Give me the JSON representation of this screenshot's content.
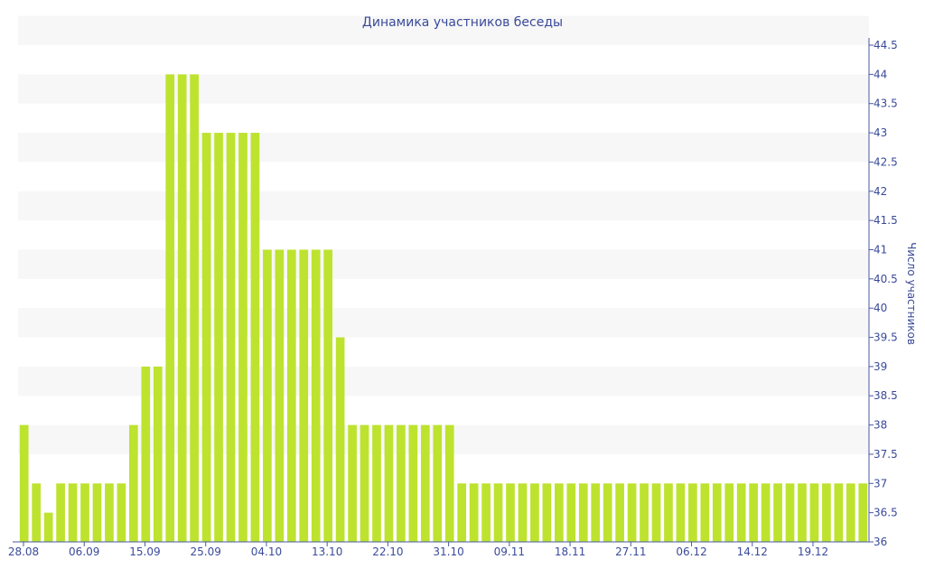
{
  "chart_data": {
    "type": "bar",
    "title": "Динамика участников беседы",
    "ylabel": "Число участников",
    "xlabel": "",
    "ylim": [
      36,
      44.5
    ],
    "y_ticks": [
      "36",
      "36.5",
      "37",
      "37.5",
      "38",
      "38.5",
      "39",
      "39.5",
      "40",
      "40.5",
      "41",
      "41.5",
      "42",
      "42.5",
      "43",
      "43.5",
      "44",
      "44.5"
    ],
    "x_tick_labels": [
      "28.08",
      "06.09",
      "15.09",
      "25.09",
      "04.10",
      "13.10",
      "22.10",
      "31.10",
      "09.11",
      "18.11",
      "27.11",
      "06.12",
      "14.12",
      "19.12"
    ],
    "grid": "horizontal bands",
    "legend": "none",
    "values": [
      38,
      37,
      36.5,
      37,
      37,
      37,
      37,
      37,
      37,
      38,
      39,
      39,
      44,
      44,
      44,
      43,
      43,
      43,
      43,
      43,
      41,
      41,
      41,
      41,
      41,
      41,
      39.5,
      38,
      38,
      38,
      38,
      38,
      38,
      38,
      38,
      38,
      37,
      37,
      37,
      37,
      37,
      37,
      37,
      37,
      37,
      37,
      37,
      37,
      37,
      37,
      37,
      37,
      37,
      37,
      37,
      37,
      37,
      37,
      37,
      37,
      37,
      37,
      37,
      37,
      37,
      37,
      37,
      37,
      37,
      37
    ]
  },
  "colors": {
    "bar": "#bde32f",
    "band": "#f7f7f7",
    "text": "#3a4a9a",
    "axis": "#4a5aa0"
  }
}
